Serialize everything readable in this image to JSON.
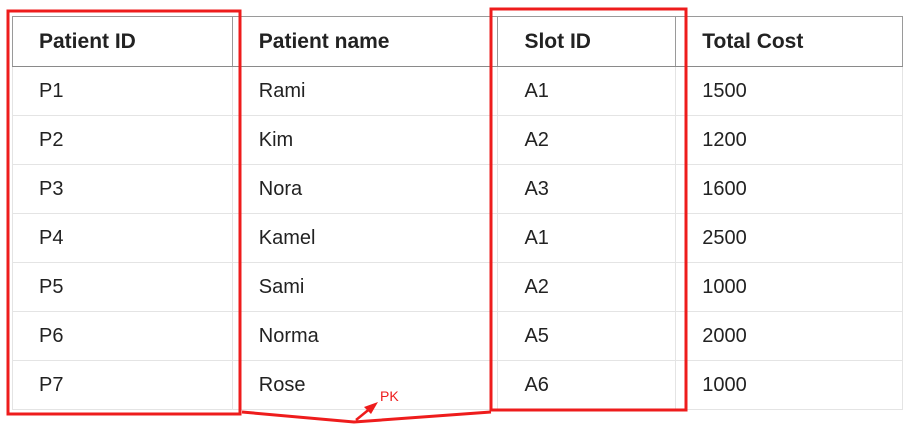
{
  "table": {
    "headers": [
      "Patient ID",
      "Patient name",
      "Slot ID",
      "Total Cost"
    ],
    "rows": [
      [
        "P1",
        "Rami",
        "A1",
        "1500"
      ],
      [
        "P2",
        "Kim",
        "A2",
        "1200"
      ],
      [
        "P3",
        "Nora",
        "A3",
        "1600"
      ],
      [
        "P4",
        "Kamel",
        "A1",
        "2500"
      ],
      [
        "P5",
        "Sami",
        "A2",
        "1000"
      ],
      [
        "P6",
        "Norma",
        "A5",
        "2000"
      ],
      [
        "P7",
        "Rose",
        "A6",
        "1000"
      ]
    ]
  },
  "annotation": {
    "label": "PK",
    "color": "#ee1c1c"
  }
}
